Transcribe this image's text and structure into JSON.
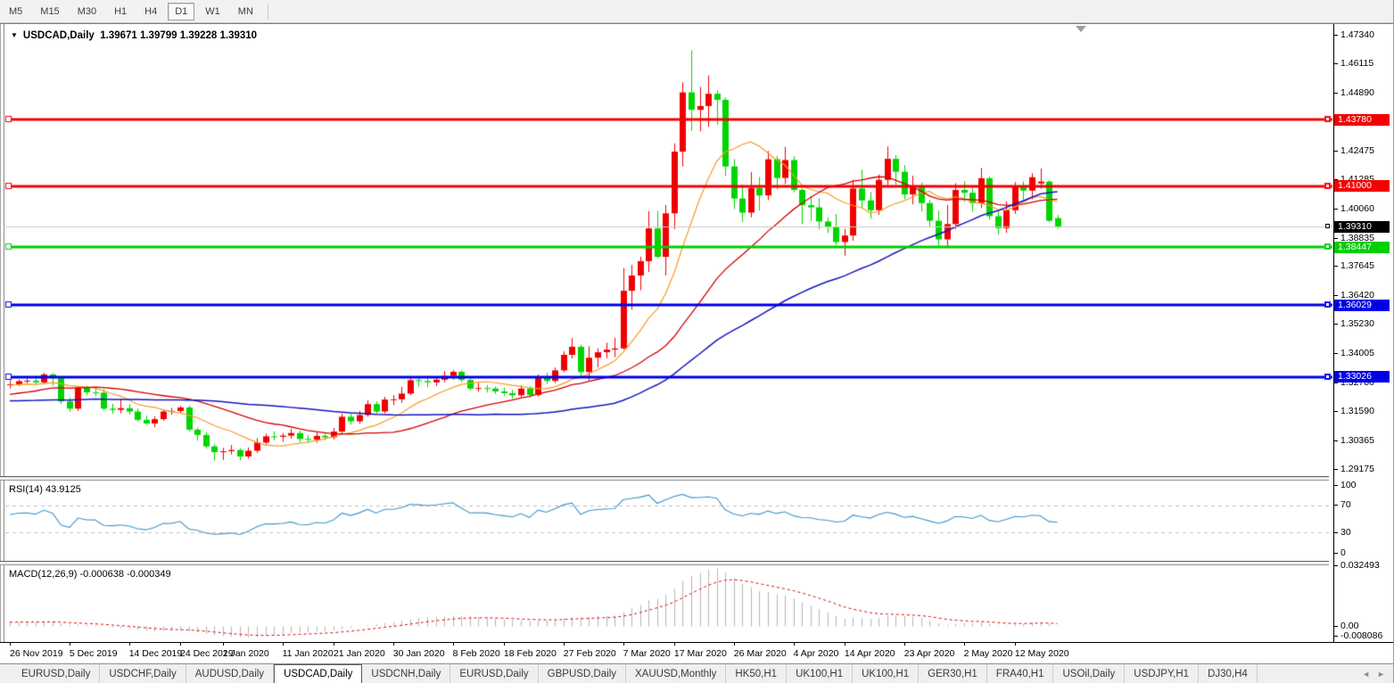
{
  "toolbar": {
    "timeframes": [
      {
        "label": "M5",
        "active": false
      },
      {
        "label": "M15",
        "active": false
      },
      {
        "label": "M30",
        "active": false
      },
      {
        "label": "H1",
        "active": false
      },
      {
        "label": "H4",
        "active": false
      },
      {
        "label": "D1",
        "active": true
      },
      {
        "label": "W1",
        "active": false
      },
      {
        "label": "MN",
        "active": false
      }
    ]
  },
  "chart": {
    "title_symbol": "USDCAD,Daily",
    "title_ohlc": "1.39671 1.39799 1.39228 1.39310"
  },
  "icons": {
    "title_marker": "▼",
    "tab_prev": "◄",
    "tab_next": "►"
  },
  "price_axis": {
    "ticks": [
      {
        "label": "1.47340",
        "price": 1.4734
      },
      {
        "label": "1.46115",
        "price": 1.46115
      },
      {
        "label": "1.44890",
        "price": 1.4489
      },
      {
        "label": "1.42475",
        "price": 1.42475
      },
      {
        "label": "1.41285",
        "price": 1.41285
      },
      {
        "label": "1.40060",
        "price": 1.4006
      },
      {
        "label": "1.38835",
        "price": 1.38835
      },
      {
        "label": "1.37645",
        "price": 1.37645
      },
      {
        "label": "1.36420",
        "price": 1.3642
      },
      {
        "label": "1.35230",
        "price": 1.3523
      },
      {
        "label": "1.34005",
        "price": 1.34005
      },
      {
        "label": "1.32780",
        "price": 1.3278
      },
      {
        "label": "1.31590",
        "price": 1.3159
      },
      {
        "label": "1.30365",
        "price": 1.30365
      },
      {
        "label": "1.29175",
        "price": 1.29175
      }
    ],
    "tags": [
      {
        "label": "1.43780",
        "price": 1.4378,
        "color": "#f40000"
      },
      {
        "label": "1.41000",
        "price": 1.41,
        "color": "#f40000"
      },
      {
        "label": "1.39310",
        "price": 1.3931,
        "color": "#000000"
      },
      {
        "label": "1.38447",
        "price": 1.38447,
        "color": "#00cf00"
      },
      {
        "label": "1.36029",
        "price": 1.36029,
        "color": "#0000e8"
      },
      {
        "label": "1.33026",
        "price": 1.33026,
        "color": "#0000e8"
      }
    ]
  },
  "rsi_panel": {
    "label": "RSI(14) 43.9125",
    "axis": [
      {
        "label": "100",
        "value": 100
      },
      {
        "label": "70",
        "value": 70
      },
      {
        "label": "30",
        "value": 30
      },
      {
        "label": "0",
        "value": 0
      }
    ],
    "levels": [
      70,
      30
    ],
    "line_color": "#3d93cf"
  },
  "macd_panel": {
    "label": "MACD(12,26,9) -0.000638 -0.000349",
    "axis": [
      {
        "label": "0.032493",
        "value": 0.032493
      },
      {
        "label": "0.00",
        "value": 0
      },
      {
        "label": "-0.008086",
        "value": -0.008086
      }
    ],
    "hist_color": "#b5b5b5",
    "signal_color": "#e00000"
  },
  "date_axis": [
    {
      "label": "26 Nov 2019",
      "bar": 0
    },
    {
      "label": "5 Dec 2019",
      "bar": 7
    },
    {
      "label": "14 Dec 2019",
      "bar": 14
    },
    {
      "label": "24 Dec 2019",
      "bar": 20
    },
    {
      "label": "2 Jan 2020",
      "bar": 25
    },
    {
      "label": "11 Jan 2020",
      "bar": 32
    },
    {
      "label": "21 Jan 2020",
      "bar": 38
    },
    {
      "label": "30 Jan 2020",
      "bar": 45
    },
    {
      "label": "8 Feb 2020",
      "bar": 52
    },
    {
      "label": "18 Feb 2020",
      "bar": 58
    },
    {
      "label": "27 Feb 2020",
      "bar": 65
    },
    {
      "label": "7 Mar 2020",
      "bar": 72
    },
    {
      "label": "17 Mar 2020",
      "bar": 78
    },
    {
      "label": "26 Mar 2020",
      "bar": 85
    },
    {
      "label": "4 Apr 2020",
      "bar": 92
    },
    {
      "label": "14 Apr 2020",
      "bar": 98
    },
    {
      "label": "23 Apr 2020",
      "bar": 105
    },
    {
      "label": "2 May 2020",
      "bar": 112
    },
    {
      "label": "12 May 2020",
      "bar": 118
    }
  ],
  "tabs": [
    {
      "label": "EURUSD,Daily",
      "active": false
    },
    {
      "label": "USDCHF,Daily",
      "active": false
    },
    {
      "label": "AUDUSD,Daily",
      "active": false
    },
    {
      "label": "USDCAD,Daily",
      "active": true
    },
    {
      "label": "USDCNH,Daily",
      "active": false
    },
    {
      "label": "EURUSD,Daily",
      "active": false
    },
    {
      "label": "GBPUSD,Daily",
      "active": false
    },
    {
      "label": "XAUUSD,Monthly",
      "active": false
    },
    {
      "label": "HK50,H1",
      "active": false
    },
    {
      "label": "UK100,H1",
      "active": false
    },
    {
      "label": "UK100,H1",
      "active": false
    },
    {
      "label": "GER30,H1",
      "active": false
    },
    {
      "label": "FRA40,H1",
      "active": false
    },
    {
      "label": "USOil,Daily",
      "active": false
    },
    {
      "label": "USDJPY,H1",
      "active": false
    },
    {
      "label": "DJ30,H4",
      "active": false
    }
  ],
  "chart_data": {
    "type": "candlestick",
    "symbol": "USDCAD",
    "timeframe": "Daily",
    "title": "USDCAD,Daily",
    "current_ohlc": {
      "open": 1.39671,
      "high": 1.39799,
      "low": 1.39228,
      "close": 1.3931
    },
    "up_color": "#f00000",
    "down_color": "#00d500",
    "color_convention": "red=bullish, green=bearish",
    "price_range_visible": {
      "top": 1.4775,
      "bottom": 1.2887
    },
    "grid": false,
    "bid_line": {
      "price": 1.3931,
      "color": "#c8c8c8"
    },
    "horizontal_lines": [
      {
        "price": 1.4378,
        "color": "#f40000",
        "width": 3
      },
      {
        "price": 1.41,
        "color": "#f40000",
        "width": 3
      },
      {
        "price": 1.38447,
        "color": "#00cf00",
        "width": 3
      },
      {
        "price": 1.36029,
        "color": "#0000e8",
        "width": 3
      },
      {
        "price": 1.33026,
        "color": "#0000e8",
        "width": 3
      }
    ],
    "moving_averages": [
      {
        "period": 10,
        "color": "#f59a23",
        "width": 1.2
      },
      {
        "period": 25,
        "color": "#d40000",
        "width": 1.3
      },
      {
        "period": 50,
        "color": "#1515c0",
        "width": 1.5
      }
    ],
    "rsi": {
      "period": 14,
      "last": 43.9125,
      "range": [
        0,
        100
      ],
      "levels": [
        30,
        70
      ]
    },
    "macd": {
      "fast": 12,
      "slow": 26,
      "signal_period": 9,
      "last": -0.000638,
      "last_signal": -0.000349,
      "scale_max": 0.032493,
      "scale_min": -0.008086
    },
    "ma_warmup_closes": [
      1.331,
      1.329,
      1.3265,
      1.324,
      1.323,
      1.325,
      1.3222,
      1.3205,
      1.318,
      1.316,
      1.3185,
      1.321,
      1.3196,
      1.317,
      1.315,
      1.313,
      1.3148,
      1.317,
      1.319,
      1.3165,
      1.314,
      1.312,
      1.3095,
      1.308,
      1.3105,
      1.313,
      1.3152,
      1.3175,
      1.316,
      1.314,
      1.3158,
      1.318,
      1.3205,
      1.3228,
      1.321,
      1.319,
      1.3215,
      1.324,
      1.3262,
      1.328,
      1.3265,
      1.3248,
      1.327,
      1.3292,
      1.3275,
      1.3258,
      1.324,
      1.3262,
      1.3285,
      1.327
    ],
    "candles": [
      [
        1.327,
        1.3288,
        1.3254,
        1.3272
      ],
      [
        1.3272,
        1.3292,
        1.3264,
        1.3285
      ],
      [
        1.3285,
        1.3295,
        1.3276,
        1.3287
      ],
      [
        1.3287,
        1.3307,
        1.327,
        1.328
      ],
      [
        1.328,
        1.332,
        1.3272,
        1.3313
      ],
      [
        1.3313,
        1.3319,
        1.3266,
        1.3297
      ],
      [
        1.3297,
        1.3302,
        1.319,
        1.32
      ],
      [
        1.32,
        1.3217,
        1.3158,
        1.317
      ],
      [
        1.317,
        1.3262,
        1.316,
        1.3257
      ],
      [
        1.3257,
        1.3266,
        1.3226,
        1.3238
      ],
      [
        1.3238,
        1.3255,
        1.3222,
        1.3237
      ],
      [
        1.3237,
        1.3252,
        1.3162,
        1.317
      ],
      [
        1.317,
        1.319,
        1.3148,
        1.3165
      ],
      [
        1.3165,
        1.3212,
        1.3151,
        1.3172
      ],
      [
        1.3172,
        1.3189,
        1.3145,
        1.3158
      ],
      [
        1.3158,
        1.3171,
        1.3116,
        1.3123
      ],
      [
        1.3123,
        1.3141,
        1.3102,
        1.3108
      ],
      [
        1.3108,
        1.3137,
        1.3092,
        1.3126
      ],
      [
        1.3126,
        1.3166,
        1.3119,
        1.3158
      ],
      [
        1.3158,
        1.3173,
        1.3145,
        1.316
      ],
      [
        1.316,
        1.3182,
        1.3152,
        1.3175
      ],
      [
        1.3175,
        1.3183,
        1.3075,
        1.3082
      ],
      [
        1.3082,
        1.3091,
        1.3036,
        1.306
      ],
      [
        1.306,
        1.3073,
        1.3002,
        1.3012
      ],
      [
        1.3012,
        1.3022,
        1.2952,
        1.2988
      ],
      [
        1.2988,
        1.3006,
        1.2955,
        1.2992
      ],
      [
        1.2992,
        1.3018,
        1.2978,
        1.2997
      ],
      [
        1.2997,
        1.3005,
        1.2954,
        1.297
      ],
      [
        1.297,
        1.3008,
        1.296,
        1.2994
      ],
      [
        1.2994,
        1.3047,
        1.2985,
        1.3028
      ],
      [
        1.3028,
        1.3065,
        1.302,
        1.3054
      ],
      [
        1.3054,
        1.3075,
        1.3037,
        1.3052
      ],
      [
        1.3052,
        1.3068,
        1.3031,
        1.3057
      ],
      [
        1.3057,
        1.3085,
        1.3044,
        1.3068
      ],
      [
        1.3068,
        1.3078,
        1.303,
        1.3043
      ],
      [
        1.3043,
        1.306,
        1.3025,
        1.304
      ],
      [
        1.304,
        1.3071,
        1.3028,
        1.3056
      ],
      [
        1.3056,
        1.3067,
        1.3038,
        1.305
      ],
      [
        1.305,
        1.3089,
        1.3041,
        1.3074
      ],
      [
        1.3074,
        1.3149,
        1.3064,
        1.3136
      ],
      [
        1.3136,
        1.3151,
        1.3103,
        1.3117
      ],
      [
        1.3117,
        1.3161,
        1.3107,
        1.3143
      ],
      [
        1.3143,
        1.3204,
        1.3136,
        1.3189
      ],
      [
        1.3189,
        1.32,
        1.3148,
        1.3158
      ],
      [
        1.3158,
        1.3219,
        1.3151,
        1.3208
      ],
      [
        1.3208,
        1.3227,
        1.3184,
        1.3209
      ],
      [
        1.3209,
        1.3261,
        1.3194,
        1.3233
      ],
      [
        1.3233,
        1.3304,
        1.3226,
        1.3289
      ],
      [
        1.3289,
        1.3305,
        1.3262,
        1.3285
      ],
      [
        1.3285,
        1.3308,
        1.326,
        1.328
      ],
      [
        1.328,
        1.3302,
        1.3264,
        1.3291
      ],
      [
        1.3291,
        1.3328,
        1.328,
        1.3307
      ],
      [
        1.3307,
        1.3331,
        1.3291,
        1.3324
      ],
      [
        1.3324,
        1.3332,
        1.3281,
        1.329
      ],
      [
        1.329,
        1.3297,
        1.3246,
        1.3254
      ],
      [
        1.3254,
        1.3278,
        1.3241,
        1.3256
      ],
      [
        1.3256,
        1.3269,
        1.3237,
        1.3254
      ],
      [
        1.3254,
        1.3263,
        1.3231,
        1.3242
      ],
      [
        1.3242,
        1.3259,
        1.3223,
        1.3235
      ],
      [
        1.3235,
        1.3249,
        1.3211,
        1.3226
      ],
      [
        1.3226,
        1.3267,
        1.3218,
        1.3254
      ],
      [
        1.3254,
        1.3264,
        1.3217,
        1.3227
      ],
      [
        1.3227,
        1.3313,
        1.322,
        1.3302
      ],
      [
        1.3302,
        1.332,
        1.3273,
        1.3286
      ],
      [
        1.3286,
        1.3342,
        1.3278,
        1.333
      ],
      [
        1.333,
        1.341,
        1.3322,
        1.3395
      ],
      [
        1.3395,
        1.3465,
        1.338,
        1.3429
      ],
      [
        1.3429,
        1.3437,
        1.3304,
        1.3323
      ],
      [
        1.3323,
        1.3431,
        1.3288,
        1.3383
      ],
      [
        1.3383,
        1.3422,
        1.3343,
        1.3406
      ],
      [
        1.3406,
        1.3446,
        1.3381,
        1.3417
      ],
      [
        1.3417,
        1.3467,
        1.3386,
        1.3422
      ],
      [
        1.3422,
        1.3758,
        1.3417,
        1.3663
      ],
      [
        1.3663,
        1.3771,
        1.3584,
        1.3727
      ],
      [
        1.3727,
        1.3806,
        1.3665,
        1.3787
      ],
      [
        1.3787,
        1.3996,
        1.3742,
        1.3924
      ],
      [
        1.3924,
        1.3997,
        1.38,
        1.3805
      ],
      [
        1.3805,
        1.4022,
        1.3727,
        1.3987
      ],
      [
        1.3987,
        1.428,
        1.3921,
        1.4245
      ],
      [
        1.4245,
        1.4535,
        1.4183,
        1.4493
      ],
      [
        1.4493,
        1.4669,
        1.4332,
        1.442
      ],
      [
        1.442,
        1.4516,
        1.433,
        1.4436
      ],
      [
        1.4436,
        1.4564,
        1.4349,
        1.4487
      ],
      [
        1.4487,
        1.4501,
        1.4358,
        1.4462
      ],
      [
        1.4462,
        1.4472,
        1.4143,
        1.4183
      ],
      [
        1.4183,
        1.4214,
        1.4005,
        1.4049
      ],
      [
        1.4049,
        1.4107,
        1.3951,
        1.399
      ],
      [
        1.399,
        1.416,
        1.397,
        1.4093
      ],
      [
        1.4093,
        1.4139,
        1.3999,
        1.4062
      ],
      [
        1.4062,
        1.4247,
        1.4042,
        1.4213
      ],
      [
        1.4213,
        1.4228,
        1.4088,
        1.4135
      ],
      [
        1.4135,
        1.4265,
        1.411,
        1.421
      ],
      [
        1.421,
        1.4226,
        1.4075,
        1.4085
      ],
      [
        1.4085,
        1.4091,
        1.3942,
        1.4021
      ],
      [
        1.4021,
        1.406,
        1.3955,
        1.4012
      ],
      [
        1.4012,
        1.405,
        1.392,
        1.3953
      ],
      [
        1.3953,
        1.397,
        1.3905,
        1.393
      ],
      [
        1.393,
        1.3985,
        1.3855,
        1.3867
      ],
      [
        1.3867,
        1.3922,
        1.381,
        1.3894
      ],
      [
        1.3894,
        1.4127,
        1.3872,
        1.4091
      ],
      [
        1.4091,
        1.417,
        1.4007,
        1.4041
      ],
      [
        1.4041,
        1.4076,
        1.3965,
        1.4
      ],
      [
        1.4,
        1.4149,
        1.3981,
        1.4127
      ],
      [
        1.4127,
        1.4267,
        1.4106,
        1.4215
      ],
      [
        1.4215,
        1.4231,
        1.4107,
        1.4161
      ],
      [
        1.4161,
        1.4189,
        1.4046,
        1.4066
      ],
      [
        1.4066,
        1.4144,
        1.4025,
        1.41
      ],
      [
        1.41,
        1.4116,
        1.3996,
        1.403
      ],
      [
        1.403,
        1.4043,
        1.3932,
        1.3956
      ],
      [
        1.3956,
        1.3999,
        1.385,
        1.3878
      ],
      [
        1.3878,
        1.4022,
        1.3845,
        1.3942
      ],
      [
        1.3942,
        1.4113,
        1.3921,
        1.4085
      ],
      [
        1.4085,
        1.4121,
        1.4035,
        1.4073
      ],
      [
        1.4073,
        1.4096,
        1.3994,
        1.403
      ],
      [
        1.403,
        1.4177,
        1.4009,
        1.4134
      ],
      [
        1.4134,
        1.4141,
        1.3961,
        1.3975
      ],
      [
        1.3975,
        1.4001,
        1.3898,
        1.3925
      ],
      [
        1.3925,
        1.4038,
        1.3905,
        1.4
      ],
      [
        1.4,
        1.4118,
        1.3985,
        1.4096
      ],
      [
        1.4096,
        1.4121,
        1.404,
        1.4082
      ],
      [
        1.4082,
        1.4155,
        1.4046,
        1.4138
      ],
      [
        1.4112,
        1.4175,
        1.409,
        1.412
      ],
      [
        1.412,
        1.4125,
        1.395,
        1.3956
      ],
      [
        1.39671,
        1.39799,
        1.39228,
        1.3931
      ]
    ]
  }
}
